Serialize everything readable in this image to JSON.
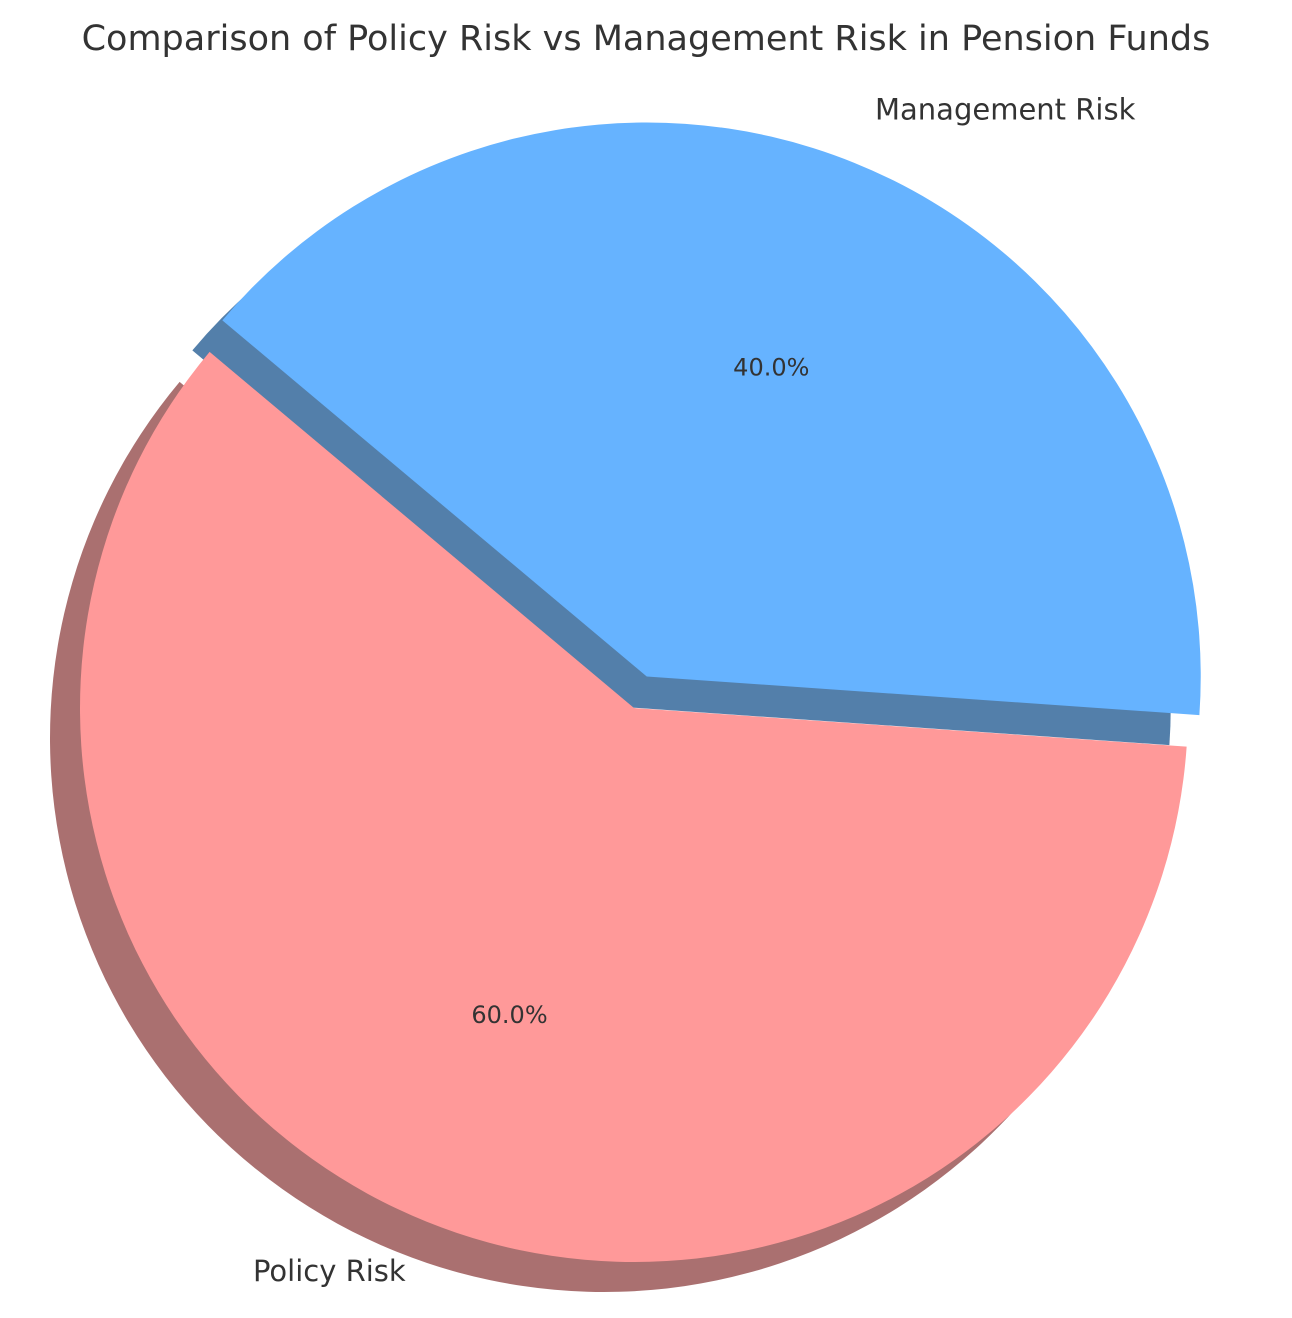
{
  "chart_data": {
    "type": "pie",
    "title": "Comparison of Policy Risk vs Management Risk in Pension Funds",
    "slices": [
      {
        "label": "Policy Risk",
        "value": 60.0,
        "pct_label": "60.0%",
        "color": "#ff9999",
        "exploded": false
      },
      {
        "label": "Management Risk",
        "value": 40.0,
        "pct_label": "40.0%",
        "color": "#66b3ff",
        "exploded": true
      }
    ],
    "shadow": true
  }
}
